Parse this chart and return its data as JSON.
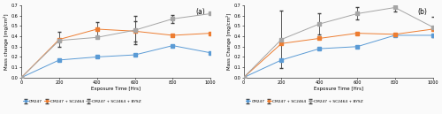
{
  "x": [
    0,
    200,
    400,
    600,
    800,
    1000
  ],
  "a_cm247": [
    0,
    0.17,
    0.2,
    0.22,
    0.31,
    0.24
  ],
  "a_cm247_sc2464": [
    0,
    0.37,
    0.47,
    0.45,
    0.41,
    0.43
  ],
  "a_cm247_sc2464_bysz": [
    0,
    0.36,
    0.39,
    0.46,
    0.57,
    0.62
  ],
  "a_err_cm247": [
    0,
    0.0,
    0.0,
    0.0,
    0.0,
    0.0
  ],
  "a_err_cm247_sc2464": [
    0,
    0.07,
    0.07,
    0.1,
    0.0,
    0.0
  ],
  "a_err_cm247_sc2464_bysz": [
    0,
    0.0,
    0.0,
    0.14,
    0.04,
    0.0
  ],
  "b_cm247": [
    0,
    0.17,
    0.28,
    0.3,
    0.41,
    0.41
  ],
  "b_cm247_sc2464": [
    0,
    0.33,
    0.38,
    0.43,
    0.42,
    0.47
  ],
  "b_cm247_sc2464_bysz": [
    0,
    0.37,
    0.52,
    0.62,
    0.68,
    0.49
  ],
  "b_err_cm247": [
    0,
    0.0,
    0.0,
    0.0,
    0.0,
    0.0
  ],
  "b_err_cm247_sc2464": [
    0,
    0.0,
    0.0,
    0.0,
    0.0,
    0.0
  ],
  "b_err_cm247_sc2464_bysz": [
    0,
    0.28,
    0.1,
    0.06,
    0.04,
    0.1
  ],
  "color_cm247": "#5b9bd5",
  "color_sc2464": "#ed7d31",
  "color_bysz": "#a5a5a5",
  "ecolor": "#404040",
  "label_cm247": "CM247",
  "label_sc2464": "CM247 + SC2464",
  "label_bysz": "CM247 + SC2464 + BYSZ",
  "xlabel": "Exposure Time [Hrs]",
  "ylabel_a": "Mass change [mg/cm²]",
  "ylabel_b": "Mass Change [mg/cm²]",
  "ylim": [
    0,
    0.7
  ],
  "xlim": [
    0,
    1000
  ],
  "xticks": [
    0,
    200,
    400,
    600,
    800,
    1000
  ],
  "yticks": [
    0.0,
    0.1,
    0.2,
    0.3,
    0.4,
    0.5,
    0.6,
    0.7
  ],
  "label_a": "(a)",
  "label_b": "(b)",
  "bg_color": "#fafafa"
}
